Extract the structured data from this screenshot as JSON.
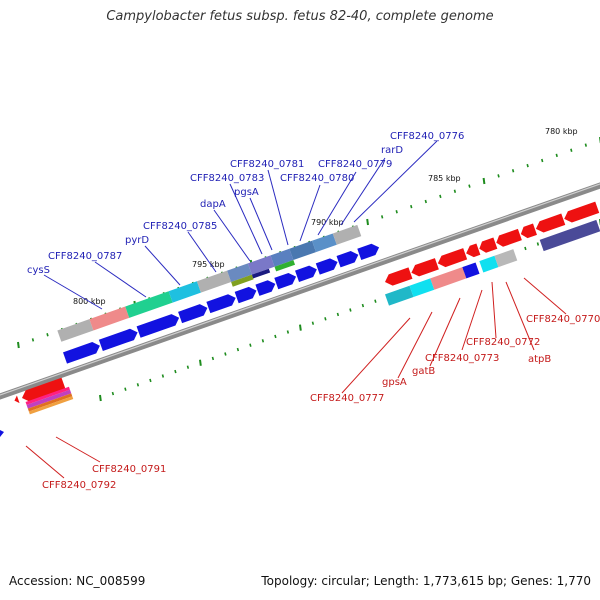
{
  "title": "Campylobacter fetus subsp. fetus 82-40, complete genome",
  "footer": {
    "accession": "Accession: NC_008599",
    "summary": "Topology: circular; Length: 1,773,615 bp; Genes: 1,770"
  },
  "ticks": [
    "780 kbp",
    "785 kbp",
    "790 kbp",
    "795 kbp",
    "800 kbp"
  ],
  "labels_blue": [
    "CFF8240_0776",
    "rarD",
    "CFF8240_0779",
    "CFF8240_0781",
    "CFF8240_0780",
    "CFF8240_0783",
    "pgsA",
    "dapA",
    "CFF8240_0785",
    "pyrD",
    "CFF8240_0787",
    "cysS"
  ],
  "labels_red": [
    "CFF8240_0770",
    "CFF8240_0772",
    "atpB",
    "CFF8240_0773",
    "gatB",
    "gpsA",
    "CFF8240_0777",
    "CFF8240_0791",
    "CFF8240_0792"
  ],
  "colors": {
    "forward_cds": "#1010e0",
    "reverse_cds": "#ee1111",
    "backbone": "#7a7a7a",
    "tick": "#1e8c1e"
  }
}
